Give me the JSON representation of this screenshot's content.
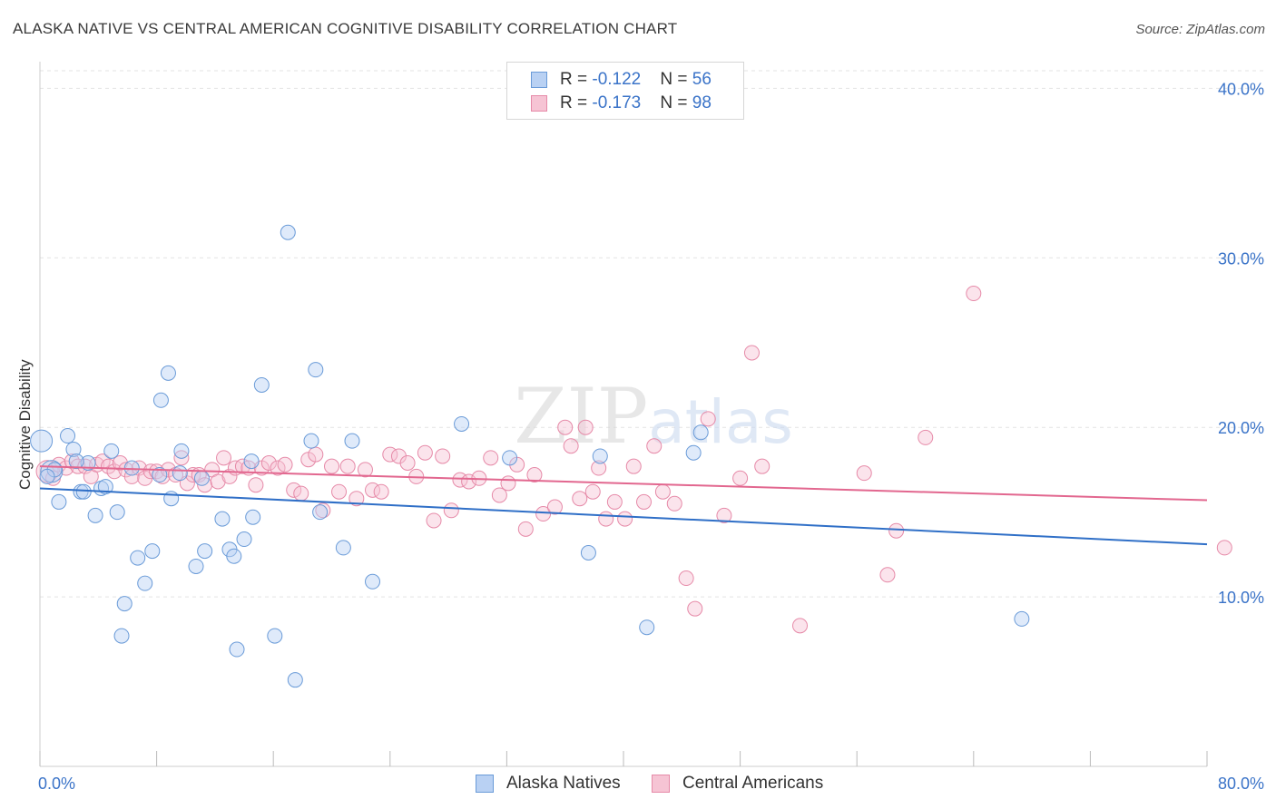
{
  "title": "ALASKA NATIVE VS CENTRAL AMERICAN COGNITIVE DISABILITY CORRELATION CHART",
  "source": "Source: ZipAtlas.com",
  "watermark": "ZIPatlas",
  "legend_top": {
    "rows": [
      {
        "r_label": "R = ",
        "r_value": "-0.122",
        "n_label": "N = ",
        "n_value": "56"
      },
      {
        "r_label": "R = ",
        "r_value": "-0.173",
        "n_label": "N = ",
        "n_value": "98"
      }
    ]
  },
  "legend_bottom": {
    "items": [
      "Alaska Natives",
      "Central Americans"
    ]
  },
  "colors": {
    "blue_fill": "#b9d1f3",
    "blue_stroke": "#6a9bd8",
    "blue_line": "#2f6fc7",
    "pink_fill": "#f6c4d4",
    "pink_stroke": "#e68aa8",
    "pink_line": "#e2678f",
    "tick_label": "#3a73c8",
    "grid": "#e3e3e3"
  },
  "chart_data": {
    "type": "scatter",
    "title": "ALASKA NATIVE VS CENTRAL AMERICAN COGNITIVE DISABILITY CORRELATION CHART",
    "xlabel": "",
    "ylabel": "Cognitive Disability",
    "xlim": [
      0,
      80
    ],
    "ylim": [
      0,
      42
    ],
    "x_tick_labels": [
      "0.0%",
      "80.0%"
    ],
    "y_ticks": [
      10,
      20,
      30,
      40
    ],
    "y_tick_labels": [
      "10.0%",
      "20.0%",
      "30.0%",
      "40.0%"
    ],
    "grid": true,
    "legend_position": "top-center",
    "series": [
      {
        "name": "Alaska Natives",
        "color": "#6a9bd8",
        "trend": {
          "x0": 0,
          "y0": 16.4,
          "x1": 80,
          "y1": 13.1
        },
        "points": [
          [
            0.1,
            19.2
          ],
          [
            0.8,
            17.4
          ],
          [
            1.0,
            17.5
          ],
          [
            1.3,
            15.6
          ],
          [
            1.9,
            19.5
          ],
          [
            2.3,
            18.7
          ],
          [
            2.8,
            16.2
          ],
          [
            3.0,
            16.2
          ],
          [
            3.3,
            17.9
          ],
          [
            3.8,
            14.8
          ],
          [
            4.2,
            16.4
          ],
          [
            4.5,
            16.5
          ],
          [
            4.9,
            18.6
          ],
          [
            5.3,
            15.0
          ],
          [
            5.8,
            9.6
          ],
          [
            5.6,
            7.7
          ],
          [
            6.3,
            17.6
          ],
          [
            6.7,
            12.3
          ],
          [
            7.2,
            10.8
          ],
          [
            7.7,
            12.7
          ],
          [
            8.2,
            17.2
          ],
          [
            8.3,
            21.6
          ],
          [
            8.8,
            23.2
          ],
          [
            9.0,
            15.8
          ],
          [
            9.6,
            17.3
          ],
          [
            9.7,
            18.6
          ],
          [
            10.7,
            11.8
          ],
          [
            11.1,
            17.0
          ],
          [
            11.3,
            12.7
          ],
          [
            12.5,
            14.6
          ],
          [
            13.0,
            12.8
          ],
          [
            13.3,
            12.4
          ],
          [
            13.5,
            6.9
          ],
          [
            14.0,
            13.4
          ],
          [
            14.5,
            18.0
          ],
          [
            14.6,
            14.7
          ],
          [
            15.2,
            22.5
          ],
          [
            16.1,
            7.7
          ],
          [
            17.0,
            31.5
          ],
          [
            17.5,
            5.1
          ],
          [
            18.6,
            19.2
          ],
          [
            18.9,
            23.4
          ],
          [
            19.2,
            15.0
          ],
          [
            20.8,
            12.9
          ],
          [
            21.4,
            19.2
          ],
          [
            22.8,
            10.9
          ],
          [
            28.9,
            20.2
          ],
          [
            32.2,
            18.2
          ],
          [
            37.6,
            12.6
          ],
          [
            38.4,
            18.3
          ],
          [
            41.6,
            8.2
          ],
          [
            44.8,
            18.5
          ],
          [
            45.3,
            19.7
          ],
          [
            67.3,
            8.7
          ],
          [
            0.5,
            17.1
          ],
          [
            2.5,
            18.0
          ]
        ]
      },
      {
        "name": "Central Americans",
        "color": "#e68aa8",
        "trend": {
          "x0": 0,
          "y0": 17.7,
          "x1": 80,
          "y1": 15.7
        },
        "points": [
          [
            0.5,
            17.4
          ],
          [
            0.9,
            17.0
          ],
          [
            1.3,
            17.8
          ],
          [
            1.8,
            17.6
          ],
          [
            2.2,
            18.0
          ],
          [
            2.6,
            17.7
          ],
          [
            3.1,
            17.7
          ],
          [
            3.5,
            17.1
          ],
          [
            3.9,
            17.8
          ],
          [
            4.3,
            18.0
          ],
          [
            4.7,
            17.7
          ],
          [
            5.1,
            17.4
          ],
          [
            5.5,
            17.9
          ],
          [
            5.9,
            17.5
          ],
          [
            6.3,
            17.1
          ],
          [
            6.8,
            17.6
          ],
          [
            7.2,
            17.0
          ],
          [
            7.6,
            17.4
          ],
          [
            8.0,
            17.4
          ],
          [
            8.4,
            17.1
          ],
          [
            8.8,
            17.5
          ],
          [
            9.3,
            17.2
          ],
          [
            9.7,
            18.2
          ],
          [
            10.1,
            16.7
          ],
          [
            10.5,
            17.2
          ],
          [
            10.9,
            17.2
          ],
          [
            11.3,
            16.6
          ],
          [
            11.8,
            17.5
          ],
          [
            12.2,
            16.8
          ],
          [
            12.6,
            18.2
          ],
          [
            13.0,
            17.1
          ],
          [
            13.4,
            17.6
          ],
          [
            13.9,
            17.7
          ],
          [
            14.3,
            17.6
          ],
          [
            14.8,
            16.6
          ],
          [
            15.2,
            17.6
          ],
          [
            15.7,
            17.9
          ],
          [
            16.3,
            17.6
          ],
          [
            16.8,
            17.8
          ],
          [
            17.4,
            16.3
          ],
          [
            17.9,
            16.1
          ],
          [
            18.4,
            18.1
          ],
          [
            18.9,
            18.4
          ],
          [
            19.4,
            15.1
          ],
          [
            20.0,
            17.7
          ],
          [
            20.5,
            16.2
          ],
          [
            21.1,
            17.7
          ],
          [
            21.7,
            15.8
          ],
          [
            22.3,
            17.5
          ],
          [
            22.8,
            16.3
          ],
          [
            23.4,
            16.2
          ],
          [
            24.0,
            18.4
          ],
          [
            24.6,
            18.3
          ],
          [
            25.2,
            17.9
          ],
          [
            25.8,
            17.1
          ],
          [
            26.4,
            18.5
          ],
          [
            27.0,
            14.5
          ],
          [
            27.6,
            18.3
          ],
          [
            28.2,
            15.1
          ],
          [
            28.8,
            16.9
          ],
          [
            29.4,
            16.8
          ],
          [
            30.1,
            17.0
          ],
          [
            30.9,
            18.2
          ],
          [
            31.5,
            16.0
          ],
          [
            32.1,
            16.7
          ],
          [
            32.7,
            17.8
          ],
          [
            33.3,
            14.0
          ],
          [
            33.9,
            17.2
          ],
          [
            34.5,
            14.9
          ],
          [
            35.3,
            15.3
          ],
          [
            36.0,
            20.0
          ],
          [
            36.4,
            18.9
          ],
          [
            37.0,
            15.8
          ],
          [
            37.4,
            20.0
          ],
          [
            37.9,
            16.2
          ],
          [
            38.3,
            17.6
          ],
          [
            38.8,
            14.6
          ],
          [
            39.4,
            15.6
          ],
          [
            40.1,
            14.6
          ],
          [
            40.7,
            17.7
          ],
          [
            41.4,
            15.6
          ],
          [
            42.1,
            18.9
          ],
          [
            42.7,
            16.2
          ],
          [
            43.5,
            15.5
          ],
          [
            44.3,
            11.1
          ],
          [
            44.9,
            9.3
          ],
          [
            45.8,
            20.5
          ],
          [
            46.9,
            14.8
          ],
          [
            48.0,
            17.0
          ],
          [
            48.8,
            24.4
          ],
          [
            49.5,
            17.7
          ],
          [
            52.1,
            8.3
          ],
          [
            56.5,
            17.3
          ],
          [
            58.7,
            13.9
          ],
          [
            58.1,
            11.3
          ],
          [
            60.7,
            19.4
          ],
          [
            64.0,
            27.9
          ],
          [
            81.2,
            12.9
          ]
        ]
      }
    ]
  }
}
